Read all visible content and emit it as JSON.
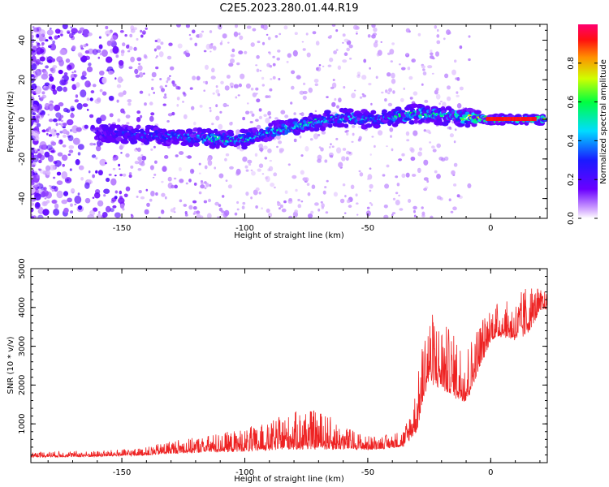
{
  "figure_title": "C2E5.2023.280.01.44.R19",
  "chart_data": [
    {
      "type": "heatmap",
      "title": "C2E5.2023.280.01.44.R19",
      "xlabel": "Height of straight line (km)",
      "ylabel": "Frequency (Hz)",
      "xlim": [
        -187,
        23
      ],
      "ylim": [
        -50,
        48
      ],
      "x_ticks": [
        -150,
        -100,
        -50,
        0
      ],
      "x_tick_labels": [
        "-150",
        "-100",
        "-50",
        "0"
      ],
      "y_ticks": [
        -40,
        -20,
        0,
        20,
        40
      ],
      "y_tick_labels": [
        "-40",
        "-20",
        "0",
        "20",
        "40"
      ],
      "colorbar": {
        "label": "Normalized spectral amplitude",
        "range": [
          0,
          1
        ],
        "ticks": [
          0.0,
          0.2,
          0.4,
          0.6,
          0.8
        ],
        "tick_labels": [
          "0.0",
          "0.2",
          "0.4",
          "0.6",
          "0.8"
        ],
        "colormap": "rainbow (white → purple → blue → cyan → green → yellow → red → magenta)"
      },
      "ridge": {
        "description": "Band of high spectral amplitude tracing Doppler frequency vs height",
        "x": [
          -155,
          -140,
          -120,
          -110,
          -100,
          -90,
          -80,
          -70,
          -60,
          -50,
          -40,
          -30,
          -20,
          -10,
          0,
          10,
          20
        ],
        "center_freq": [
          -7,
          -8,
          -9,
          -10,
          -10,
          -6,
          -4,
          -1,
          1,
          0,
          1,
          3,
          2,
          1,
          0,
          0,
          0
        ],
        "peak_amplitude": [
          0.25,
          0.35,
          0.45,
          0.5,
          0.5,
          0.45,
          0.5,
          0.5,
          0.5,
          0.45,
          0.5,
          0.55,
          0.55,
          0.6,
          0.9,
          0.85,
          0.7
        ]
      },
      "grid": false
    },
    {
      "type": "line",
      "xlabel": "Height of straight line (km)",
      "ylabel": "SNR (10 * v/v)",
      "xlim": [
        -187,
        23
      ],
      "ylim": [
        0,
        5000
      ],
      "x_ticks": [
        -150,
        -100,
        -50,
        0
      ],
      "x_tick_labels": [
        "-150",
        "-100",
        "-50",
        "0"
      ],
      "y_ticks": [
        1000,
        2000,
        3000,
        4000,
        5000
      ],
      "y_tick_labels": [
        "1000",
        "2000",
        "3000",
        "4000",
        "5000"
      ],
      "series": [
        {
          "color": "#ee2222",
          "envelope_x": [
            -187,
            -160,
            -140,
            -130,
            -120,
            -110,
            -100,
            -90,
            -80,
            -70,
            -60,
            -50,
            -40,
            -35,
            -30,
            -27,
            -25,
            -20,
            -15,
            -10,
            -5,
            0,
            5,
            10,
            15,
            20,
            23
          ],
          "envelope_base": [
            150,
            160,
            200,
            250,
            280,
            300,
            320,
            350,
            400,
            400,
            380,
            350,
            400,
            450,
            900,
            1800,
            2200,
            2000,
            1800,
            1600,
            2400,
            3200,
            3300,
            3200,
            3400,
            3900,
            4000
          ],
          "envelope_amp": [
            150,
            150,
            200,
            350,
            400,
            500,
            600,
            700,
            1000,
            1000,
            600,
            350,
            350,
            500,
            1200,
            1700,
            1800,
            1800,
            1600,
            1500,
            1300,
            900,
            900,
            1000,
            1300,
            600,
            400
          ]
        }
      ],
      "grid": false
    }
  ]
}
